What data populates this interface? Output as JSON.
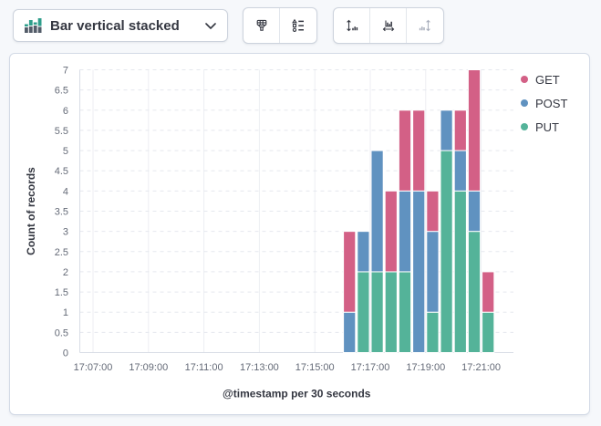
{
  "toolbar": {
    "chart_type_button": {
      "label": "Bar vertical stacked",
      "icon": "bar-vertical-stacked-icon",
      "chevron_icon": "chevron-down-icon"
    },
    "style_buttons": [
      {
        "icon": "paintbrush-icon",
        "disabled": false
      },
      {
        "icon": "legend-list-icon",
        "disabled": false
      }
    ],
    "axis_buttons": [
      {
        "icon": "left-axis-icon",
        "disabled": false
      },
      {
        "icon": "bottom-axis-icon",
        "disabled": false
      },
      {
        "icon": "right-axis-icon",
        "disabled": true
      }
    ]
  },
  "colors": {
    "get": "#D36086",
    "post": "#6092C0",
    "put": "#54B399",
    "panel_border": "#D3DAE6",
    "page_background": "#F6F8FB",
    "grid_dashed": "#E5E8EE",
    "grid_solid": "#ECEEF3",
    "axis_line": "#D9DDE6",
    "tick_text": "#646A77"
  },
  "chart_data": {
    "type": "bar",
    "stacked": true,
    "orientation": "vertical",
    "title": "",
    "xlabel": "@timestamp per 30 seconds",
    "ylabel": "Count of records",
    "ylim": [
      0,
      7
    ],
    "y_tick_step": 0.5,
    "x_tick_labels": [
      "17:07:00",
      "17:09:00",
      "17:11:00",
      "17:13:00",
      "17:15:00",
      "17:17:00",
      "17:19:00",
      "17:21:00"
    ],
    "x_tick_interval_seconds": 120,
    "bucket_interval_seconds": 30,
    "categories": [
      "17:16:00",
      "17:16:30",
      "17:17:00",
      "17:17:30",
      "17:18:00",
      "17:18:30",
      "17:19:00",
      "17:19:30",
      "17:20:00",
      "17:20:30",
      "17:21:00"
    ],
    "series": [
      {
        "name": "GET",
        "color": "#D36086",
        "values": [
          2,
          0,
          0,
          2,
          2,
          2,
          1,
          0,
          1,
          3,
          1
        ]
      },
      {
        "name": "POST",
        "color": "#6092C0",
        "values": [
          1,
          1,
          3,
          0,
          2,
          4,
          2,
          1,
          1,
          1,
          0
        ]
      },
      {
        "name": "PUT",
        "color": "#54B399",
        "values": [
          0,
          2,
          2,
          2,
          2,
          0,
          1,
          5,
          4,
          3,
          1
        ]
      }
    ],
    "stack_order_bottom_to_top": [
      "PUT",
      "POST",
      "GET"
    ],
    "legend": {
      "position": "right",
      "items": [
        "GET",
        "POST",
        "PUT"
      ]
    },
    "grid": {
      "horizontal": "dashed",
      "vertical": "solid"
    }
  }
}
